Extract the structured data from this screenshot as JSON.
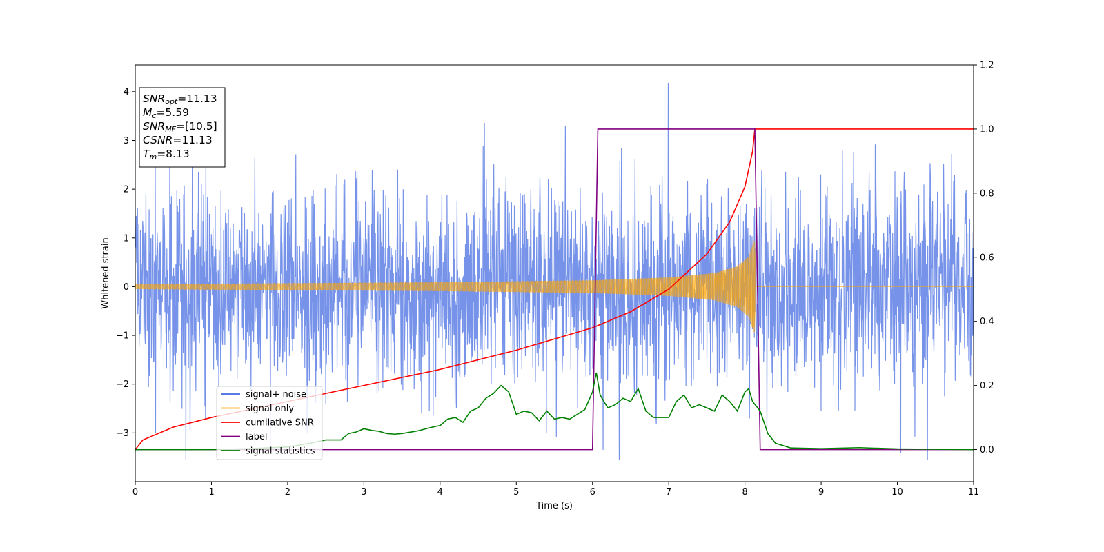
{
  "chart_data": {
    "type": "line",
    "xlabel": "Time (s)",
    "ylabel": "Whitened strain",
    "xlim": [
      0,
      11
    ],
    "ylim_left": [
      -4.0,
      4.55
    ],
    "ylim_right": [
      -0.1,
      1.2
    ],
    "xticks": [
      "0",
      "1",
      "2",
      "3",
      "4",
      "5",
      "6",
      "7",
      "8",
      "9",
      "10",
      "11"
    ],
    "yticks_left": [
      "−3",
      "−2",
      "−1",
      "0",
      "1",
      "2",
      "3",
      "4"
    ],
    "yticks_right": [
      "0.0",
      "0.2",
      "0.4",
      "0.6",
      "0.8",
      "1.0",
      "1.2"
    ],
    "info_box": {
      "lines": [
        {
          "main": "SNR",
          "sub": "opt",
          "rest": "=11.13"
        },
        {
          "main": "M",
          "sub": "c",
          "rest": "=5.59"
        },
        {
          "main": "SNR",
          "sub": "MF",
          "rest": "=[10.5]"
        },
        {
          "main": "CSNR",
          "sub": "",
          "rest": "=11.13"
        },
        {
          "main": "T",
          "sub": "m",
          "rest": "=8.13"
        }
      ]
    },
    "legend": {
      "location": "lower-left",
      "entries": [
        {
          "label": "signal+ noise",
          "color": "#4169e1"
        },
        {
          "label": "signal only",
          "color": "#ffa500"
        },
        {
          "label": "cumilative SNR",
          "color": "#ff0000"
        },
        {
          "label": "label",
          "color": "#800080"
        },
        {
          "label": "signal statistics",
          "color": "#008000"
        }
      ]
    },
    "series": [
      {
        "name": "signal+ noise",
        "axis": "left",
        "color": "#4169e1",
        "kind": "noise",
        "sigma": 1.0,
        "ymin": -3.55,
        "ymax": 4.18
      },
      {
        "name": "signal only",
        "axis": "left",
        "color": "#ffa500",
        "kind": "chirp",
        "merger_time": 8.13,
        "envelope": {
          "x": [
            0,
            2,
            4,
            6,
            7,
            7.6,
            7.9,
            8.05,
            8.13,
            8.15
          ],
          "y": [
            0.05,
            0.07,
            0.09,
            0.13,
            0.19,
            0.28,
            0.42,
            0.62,
            1.0,
            0.0
          ]
        }
      },
      {
        "name": "cumilative SNR",
        "axis": "right",
        "color": "#ff0000",
        "x": [
          0,
          0.1,
          0.5,
          1,
          2,
          3,
          4,
          5,
          6,
          6.5,
          7,
          7.5,
          7.8,
          8.0,
          8.1,
          8.13,
          11
        ],
        "y": [
          0.0,
          0.03,
          0.07,
          0.1,
          0.15,
          0.2,
          0.25,
          0.31,
          0.38,
          0.43,
          0.5,
          0.61,
          0.71,
          0.82,
          0.93,
          1.0,
          1.0
        ]
      },
      {
        "name": "label",
        "axis": "right",
        "color": "#800080",
        "x": [
          0,
          6.0,
          6.07,
          8.13,
          8.2,
          11
        ],
        "y": [
          0,
          0,
          1,
          1,
          0,
          0
        ]
      },
      {
        "name": "signal statistics",
        "axis": "right",
        "color": "#008000",
        "x": [
          0,
          1.0,
          1.5,
          2.0,
          2.3,
          2.5,
          2.7,
          2.8,
          2.9,
          3.0,
          3.1,
          3.2,
          3.3,
          3.4,
          3.5,
          3.7,
          3.9,
          4.0,
          4.1,
          4.2,
          4.3,
          4.4,
          4.5,
          4.6,
          4.7,
          4.8,
          4.9,
          5.0,
          5.1,
          5.2,
          5.3,
          5.4,
          5.5,
          5.6,
          5.7,
          5.8,
          5.9,
          6.0,
          6.05,
          6.1,
          6.2,
          6.3,
          6.4,
          6.5,
          6.6,
          6.7,
          6.8,
          6.9,
          7.0,
          7.1,
          7.2,
          7.3,
          7.4,
          7.5,
          7.6,
          7.7,
          7.8,
          7.9,
          8.0,
          8.05,
          8.1,
          8.2,
          8.3,
          8.4,
          8.6,
          9.0,
          9.5,
          10.0,
          11.0
        ],
        "y": [
          0.0,
          0.0,
          0.003,
          0.008,
          0.02,
          0.03,
          0.03,
          0.05,
          0.055,
          0.065,
          0.06,
          0.057,
          0.05,
          0.048,
          0.05,
          0.058,
          0.07,
          0.075,
          0.095,
          0.1,
          0.085,
          0.12,
          0.13,
          0.16,
          0.175,
          0.2,
          0.18,
          0.11,
          0.12,
          0.115,
          0.09,
          0.12,
          0.095,
          0.1,
          0.095,
          0.11,
          0.125,
          0.18,
          0.24,
          0.17,
          0.13,
          0.14,
          0.16,
          0.15,
          0.19,
          0.12,
          0.1,
          0.1,
          0.1,
          0.15,
          0.17,
          0.13,
          0.14,
          0.13,
          0.12,
          0.17,
          0.15,
          0.12,
          0.18,
          0.19,
          0.15,
          0.12,
          0.05,
          0.02,
          0.005,
          0.003,
          0.006,
          0.002,
          0.0
        ]
      }
    ]
  }
}
